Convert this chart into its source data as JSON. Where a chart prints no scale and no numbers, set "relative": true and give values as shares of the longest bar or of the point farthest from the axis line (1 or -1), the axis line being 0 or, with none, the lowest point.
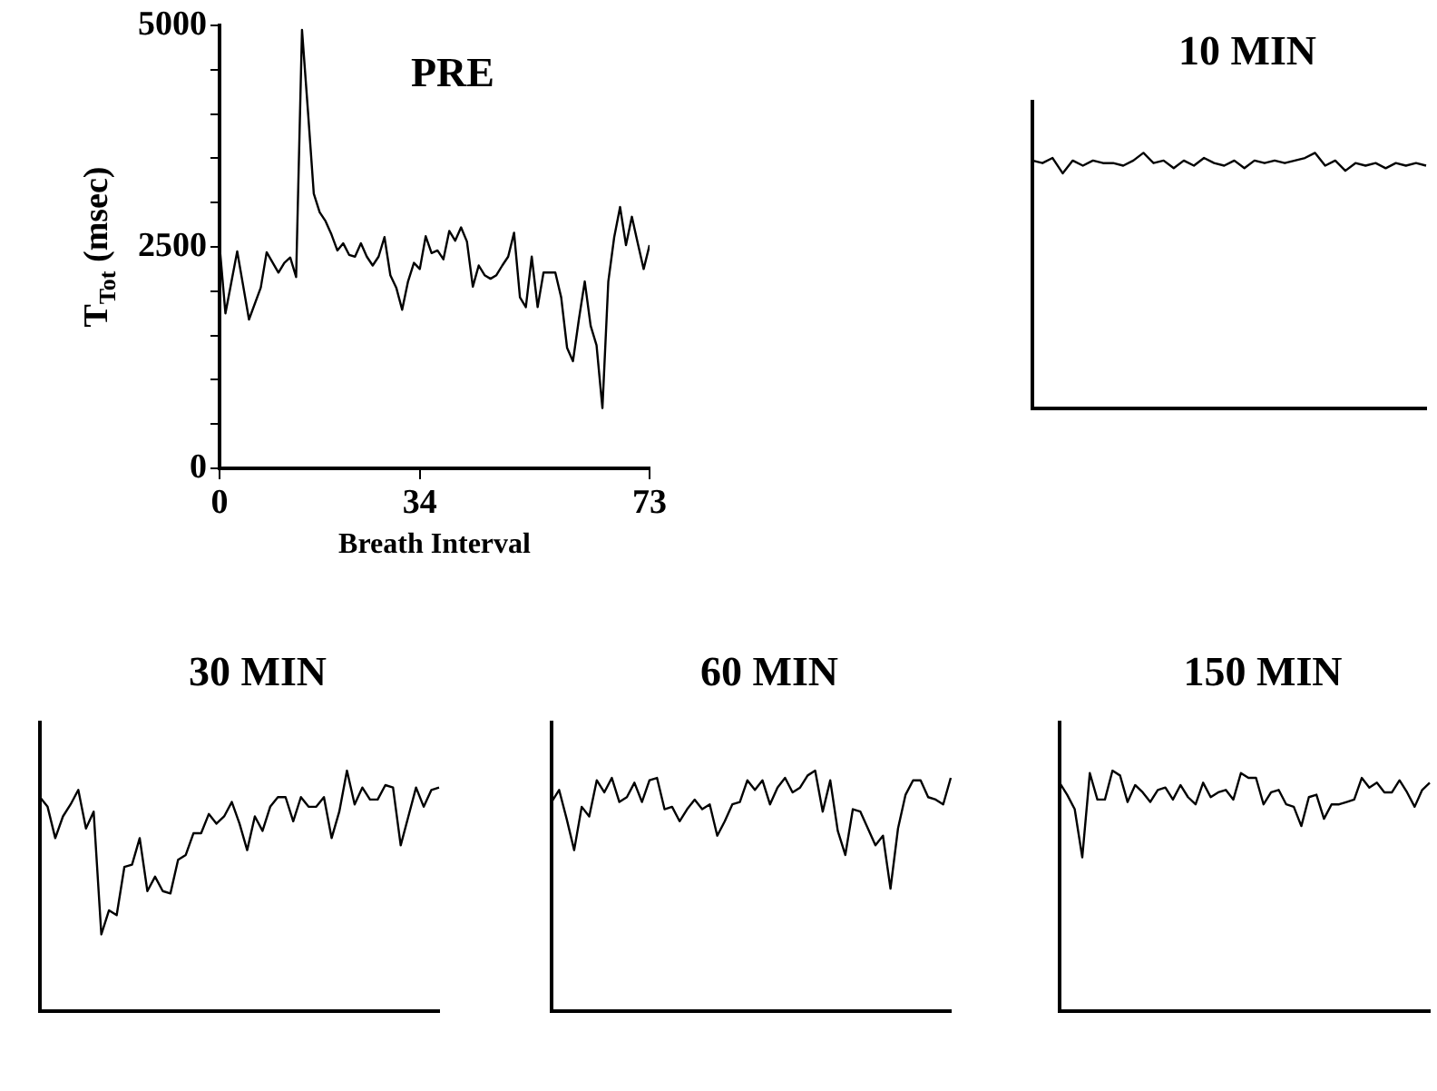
{
  "chart_data": [
    {
      "type": "line",
      "title": "PRE",
      "xlabel": "Breath Interval",
      "ylabel": "T$_{Tot}$ (msec)",
      "color": "#000000",
      "x": [
        0,
        1,
        3,
        5,
        7,
        8,
        10,
        11,
        12,
        13,
        14,
        15,
        16,
        17,
        18,
        19,
        20,
        21,
        22,
        23,
        24,
        25,
        26,
        27,
        28,
        29,
        30,
        31,
        32,
        33,
        34,
        35,
        36,
        37,
        38,
        39,
        40,
        41,
        42,
        43,
        44,
        45,
        46,
        47,
        48,
        49,
        50,
        51,
        52,
        53,
        54,
        55,
        56,
        57,
        58,
        59,
        60,
        61,
        62,
        63,
        64,
        65,
        66,
        67,
        68,
        69,
        70,
        71,
        72,
        73
      ],
      "values": [
        2520,
        1750,
        2450,
        1680,
        2040,
        2440,
        2210,
        2320,
        2380,
        2160,
        4950,
        4040,
        3100,
        2890,
        2790,
        2640,
        2460,
        2540,
        2410,
        2390,
        2540,
        2390,
        2290,
        2390,
        2610,
        2180,
        2040,
        1790,
        2110,
        2320,
        2250,
        2620,
        2430,
        2460,
        2360,
        2680,
        2570,
        2720,
        2560,
        2050,
        2290,
        2180,
        2140,
        2180,
        2290,
        2390,
        2660,
        1930,
        1820,
        2390,
        1820,
        2210,
        2210,
        2210,
        1930,
        1360,
        1210,
        1680,
        2110,
        1610,
        1390,
        680,
        2110,
        2610,
        2950,
        2520,
        2840,
        2540,
        2250,
        2520
      ],
      "xlim": [
        0,
        73
      ],
      "xticks": [
        0,
        34,
        73
      ],
      "ylim": [
        0,
        5000
      ],
      "yticks": [
        0,
        {
          "value": 500,
          "label": null
        },
        {
          "value": 1000,
          "label": null
        },
        {
          "value": 1500,
          "label": null
        },
        {
          "value": 2000,
          "label": null
        },
        2500,
        {
          "value": 3000,
          "label": null
        },
        {
          "value": 3500,
          "label": null
        },
        {
          "value": 4000,
          "label": null
        },
        {
          "value": 4500,
          "label": null
        },
        5000
      ],
      "grid": false,
      "legend": false
    },
    {
      "type": "line",
      "title": "10 MIN",
      "relative": true,
      "color": "#000000",
      "categories": [
        null,
        null,
        null,
        null,
        null,
        null,
        null,
        null,
        null,
        null,
        null,
        null,
        null,
        null,
        null,
        null,
        null,
        null,
        null,
        null,
        null,
        null,
        null,
        null,
        null,
        null,
        null,
        null,
        null,
        null,
        null,
        null,
        null,
        null,
        null,
        null,
        null,
        null,
        null,
        null
      ],
      "values": [
        0.97,
        0.96,
        0.98,
        0.92,
        0.97,
        0.95,
        0.97,
        0.96,
        0.96,
        0.95,
        0.97,
        1,
        0.96,
        0.97,
        0.94,
        0.97,
        0.95,
        0.98,
        0.96,
        0.95,
        0.97,
        0.94,
        0.97,
        0.96,
        0.97,
        0.96,
        0.97,
        0.98,
        1,
        0.95,
        0.97,
        0.93,
        0.96,
        0.95,
        0.96,
        0.94,
        0.96,
        0.95,
        0.96,
        0.95
      ],
      "grid": false,
      "legend": false
    },
    {
      "type": "line",
      "title": "30 MIN",
      "relative": true,
      "color": "#000000",
      "categories": [
        null,
        null,
        null,
        null,
        null,
        null,
        null,
        null,
        null,
        null,
        null,
        null,
        null,
        null,
        null,
        null,
        null,
        null,
        null,
        null,
        null,
        null,
        null,
        null,
        null,
        null,
        null,
        null,
        null,
        null,
        null,
        null,
        null,
        null,
        null,
        null,
        null,
        null,
        null,
        null,
        null,
        null,
        null,
        null,
        null,
        null,
        null,
        null,
        null,
        null,
        null,
        null,
        null
      ],
      "values": [
        0.89,
        0.85,
        0.72,
        0.81,
        0.86,
        0.92,
        0.76,
        0.83,
        0.32,
        0.42,
        0.4,
        0.6,
        0.61,
        0.72,
        0.5,
        0.56,
        0.5,
        0.49,
        0.63,
        0.65,
        0.74,
        0.74,
        0.82,
        0.78,
        0.81,
        0.87,
        0.78,
        0.67,
        0.81,
        0.75,
        0.85,
        0.89,
        0.89,
        0.79,
        0.89,
        0.85,
        0.85,
        0.89,
        0.72,
        0.83,
        1,
        0.86,
        0.93,
        0.88,
        0.88,
        0.94,
        0.93,
        0.69,
        0.81,
        0.93,
        0.85,
        0.92,
        0.93
      ],
      "grid": false,
      "legend": false
    },
    {
      "type": "line",
      "title": "60 MIN",
      "relative": true,
      "color": "#000000",
      "categories": [
        null,
        null,
        null,
        null,
        null,
        null,
        null,
        null,
        null,
        null,
        null,
        null,
        null,
        null,
        null,
        null,
        null,
        null,
        null,
        null,
        null,
        null,
        null,
        null,
        null,
        null,
        null,
        null,
        null,
        null,
        null,
        null,
        null,
        null,
        null,
        null,
        null,
        null,
        null,
        null,
        null,
        null,
        null,
        null,
        null,
        null,
        null,
        null,
        null,
        null,
        null,
        null,
        null,
        null
      ],
      "values": [
        0.87,
        0.92,
        0.8,
        0.67,
        0.85,
        0.81,
        0.96,
        0.91,
        0.97,
        0.87,
        0.89,
        0.95,
        0.87,
        0.96,
        0.97,
        0.84,
        0.85,
        0.79,
        0.84,
        0.88,
        0.84,
        0.86,
        0.73,
        0.79,
        0.86,
        0.87,
        0.96,
        0.92,
        0.96,
        0.86,
        0.93,
        0.97,
        0.91,
        0.93,
        0.98,
        1,
        0.83,
        0.96,
        0.75,
        0.65,
        0.84,
        0.83,
        0.76,
        0.69,
        0.73,
        0.51,
        0.76,
        0.9,
        0.96,
        0.96,
        0.89,
        0.88,
        0.86,
        0.97
      ],
      "grid": false,
      "legend": false
    },
    {
      "type": "line",
      "title": "150 MIN",
      "relative": true,
      "color": "#000000",
      "categories": [
        null,
        null,
        null,
        null,
        null,
        null,
        null,
        null,
        null,
        null,
        null,
        null,
        null,
        null,
        null,
        null,
        null,
        null,
        null,
        null,
        null,
        null,
        null,
        null,
        null,
        null,
        null,
        null,
        null,
        null,
        null,
        null,
        null,
        null,
        null,
        null,
        null,
        null,
        null,
        null,
        null,
        null,
        null,
        null,
        null,
        null,
        null,
        null,
        null,
        null
      ],
      "values": [
        0.95,
        0.9,
        0.84,
        0.64,
        0.99,
        0.88,
        0.88,
        1,
        0.98,
        0.87,
        0.94,
        0.91,
        0.87,
        0.92,
        0.93,
        0.88,
        0.94,
        0.89,
        0.86,
        0.95,
        0.89,
        0.91,
        0.92,
        0.88,
        0.99,
        0.97,
        0.97,
        0.86,
        0.91,
        0.92,
        0.86,
        0.85,
        0.77,
        0.89,
        0.9,
        0.8,
        0.86,
        0.86,
        0.87,
        0.88,
        0.97,
        0.93,
        0.95,
        0.91,
        0.91,
        0.96,
        0.91,
        0.85,
        0.92,
        0.95
      ],
      "grid": false,
      "legend": false
    }
  ]
}
